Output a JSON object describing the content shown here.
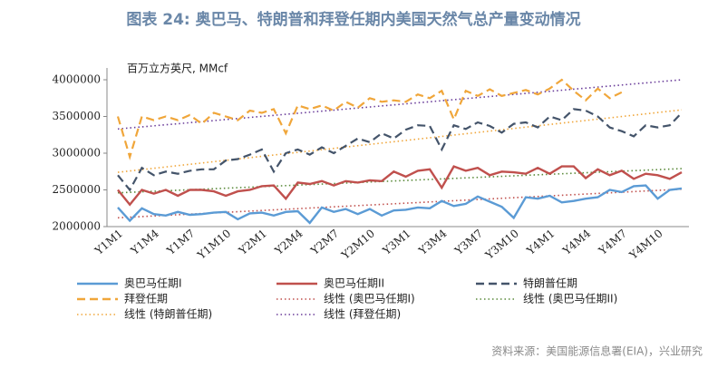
{
  "chart_data": {
    "type": "line",
    "title": "图表 24: 奥巴马、特朗普和拜登任期内美国天然气总产量变动情况",
    "y_label": "百万立方英尺, MMcf",
    "source": "资料来源：美国能源信息署(EIA)，兴业研究",
    "categories": [
      "Y1M1",
      null,
      null,
      "Y1M4",
      null,
      null,
      "Y1M7",
      null,
      null,
      "Y1M10",
      null,
      null,
      "Y2M1",
      null,
      null,
      "Y2M4",
      null,
      null,
      "Y2M7",
      null,
      null,
      "Y2M10",
      null,
      null,
      "Y3M1",
      null,
      null,
      "Y3M4",
      null,
      null,
      "Y3M7",
      null,
      null,
      "Y3M10",
      null,
      null,
      "Y4M1",
      null,
      null,
      "Y4M4",
      null,
      null,
      "Y4M7",
      null,
      null,
      "Y4M10",
      null,
      null
    ],
    "ylim": [
      2000000,
      4000000
    ],
    "yticks": [
      2000000,
      2500000,
      3000000,
      3500000,
      4000000
    ],
    "series": [
      {
        "name": "奥巴马任期I",
        "color": "#5b9bd5",
        "style": "solid",
        "values": [
          2260000,
          2080000,
          2250000,
          2170000,
          2150000,
          2200000,
          2160000,
          2170000,
          2190000,
          2200000,
          2100000,
          2180000,
          2190000,
          2150000,
          2200000,
          2210000,
          2050000,
          2260000,
          2200000,
          2240000,
          2170000,
          2240000,
          2150000,
          2220000,
          2230000,
          2260000,
          2250000,
          2350000,
          2280000,
          2310000,
          2410000,
          2340000,
          2270000,
          2120000,
          2400000,
          2380000,
          2420000,
          2330000,
          2350000,
          2380000,
          2400000,
          2500000,
          2470000,
          2550000,
          2560000,
          2380000,
          2500000,
          2520000
        ]
      },
      {
        "name": "奥巴马任期II",
        "color": "#c0504d",
        "style": "solid",
        "values": [
          2500000,
          2300000,
          2500000,
          2450000,
          2500000,
          2420000,
          2500000,
          2500000,
          2480000,
          2420000,
          2480000,
          2500000,
          2550000,
          2560000,
          2380000,
          2600000,
          2580000,
          2620000,
          2560000,
          2620000,
          2600000,
          2630000,
          2620000,
          2750000,
          2680000,
          2760000,
          2780000,
          2530000,
          2820000,
          2760000,
          2800000,
          2700000,
          2750000,
          2740000,
          2720000,
          2800000,
          2720000,
          2820000,
          2820000,
          2660000,
          2780000,
          2700000,
          2760000,
          2650000,
          2720000,
          2700000,
          2650000,
          2740000
        ]
      },
      {
        "name": "特朗普任期",
        "color": "#44546a",
        "style": "dashed",
        "values": [
          2700000,
          2500000,
          2800000,
          2700000,
          2750000,
          2720000,
          2760000,
          2780000,
          2780000,
          2900000,
          2920000,
          2980000,
          3050000,
          2750000,
          3000000,
          3050000,
          2980000,
          3080000,
          3000000,
          3100000,
          3200000,
          3150000,
          3270000,
          3200000,
          3320000,
          3380000,
          3370000,
          3050000,
          3380000,
          3330000,
          3420000,
          3370000,
          3280000,
          3400000,
          3420000,
          3350000,
          3500000,
          3450000,
          3600000,
          3580000,
          3500000,
          3350000,
          3300000,
          3230000,
          3380000,
          3350000,
          3380000,
          3550000
        ]
      },
      {
        "name": "拜登任期",
        "color": "#f0a63a",
        "style": "dashed",
        "values": [
          3500000,
          2950000,
          3500000,
          3450000,
          3500000,
          3450000,
          3520000,
          3400000,
          3550000,
          3500000,
          3450000,
          3580000,
          3550000,
          3600000,
          3270000,
          3650000,
          3600000,
          3650000,
          3580000,
          3700000,
          3620000,
          3750000,
          3700000,
          3720000,
          3700000,
          3800000,
          3750000,
          3850000,
          3460000,
          3850000,
          3780000,
          3870000,
          3780000,
          3820000,
          3860000,
          3800000,
          3880000,
          4000000,
          3850000,
          3720000,
          3880000,
          3750000,
          3830000,
          null,
          null,
          null,
          null,
          null
        ]
      }
    ],
    "trendlines": [
      {
        "name": "线性 (奥巴马任期I)",
        "color": "#c0504d",
        "values": [
          2120000,
          2510000
        ]
      },
      {
        "name": "线性 (奥巴马任期II)",
        "color": "#5a8a3a",
        "values": [
          2460000,
          2790000
        ]
      },
      {
        "name": "线性 (特朗普任期)",
        "color": "#f0a63a",
        "values": [
          2740000,
          3590000
        ]
      },
      {
        "name": "线性 (拜登任期)",
        "color": "#6a3d9a",
        "values": [
          3330000,
          4000000
        ]
      }
    ]
  }
}
